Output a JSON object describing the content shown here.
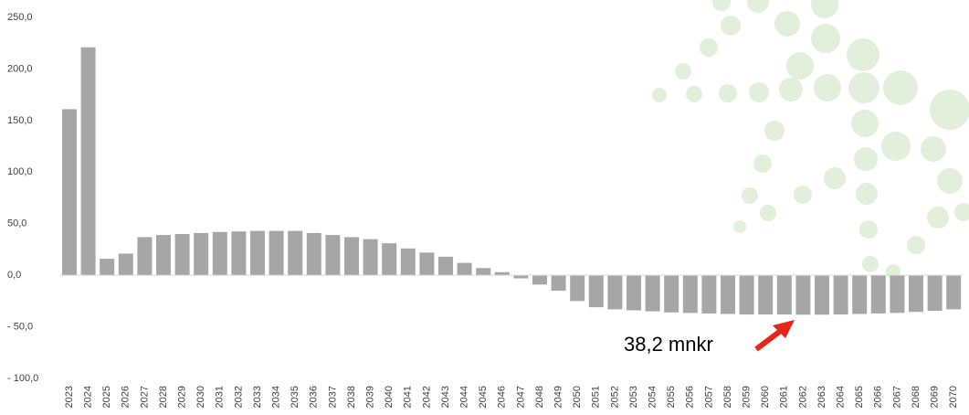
{
  "chart_data": {
    "type": "bar",
    "categories": [
      "2023",
      "2024",
      "2025",
      "2026",
      "2027",
      "2028",
      "2029",
      "2030",
      "2031",
      "2032",
      "2033",
      "2034",
      "2035",
      "2036",
      "2037",
      "2038",
      "2039",
      "2040",
      "2041",
      "2042",
      "2043",
      "2044",
      "2045",
      "2046",
      "2047",
      "2048",
      "2049",
      "2050",
      "2051",
      "2052",
      "2053",
      "2054",
      "2055",
      "2056",
      "2057",
      "2058",
      "2059",
      "2060",
      "2061",
      "2062",
      "2063",
      "2064",
      "2065",
      "2066",
      "2067",
      "2068",
      "2069",
      "2070"
    ],
    "values": [
      161,
      221,
      16,
      21,
      37,
      39,
      40,
      41,
      42,
      42.5,
      43,
      43,
      43,
      41,
      39,
      37,
      35,
      31,
      26,
      22,
      18,
      12,
      7,
      3,
      -3,
      -9,
      -15,
      -25,
      -31,
      -33,
      -34,
      -35,
      -36,
      -36.5,
      -37,
      -37.5,
      -38,
      -38,
      -38,
      -38.2,
      -38.2,
      -38,
      -37.5,
      -37,
      -36.5,
      -35.5,
      -34.5,
      -33
    ],
    "color": "#a6a6a6",
    "ylim": [
      -100,
      250
    ],
    "yticks": [
      {
        "value": -100,
        "label": "- 100,0"
      },
      {
        "value": -50,
        "label": "- 50,0"
      },
      {
        "value": 0,
        "label": "0,0"
      },
      {
        "value": 50,
        "label": "50,0"
      },
      {
        "value": 100,
        "label": "100,0"
      },
      {
        "value": 150,
        "label": "150,0"
      },
      {
        "value": 200,
        "label": "200,0"
      },
      {
        "value": 250,
        "label": "250,0"
      }
    ],
    "annotation": "38,2 mnkr"
  }
}
